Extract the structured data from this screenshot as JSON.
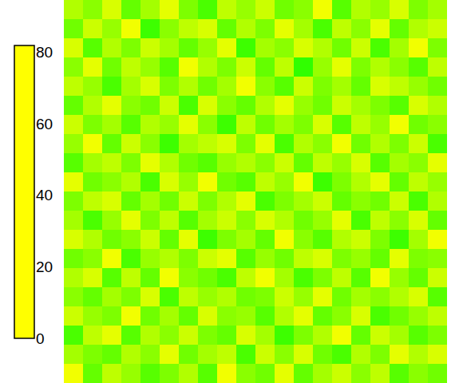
{
  "chart_data": {
    "type": "heatmap",
    "tick_labels": false,
    "colorbar_range": [
      0,
      82
    ],
    "colorbar_ticks": [
      0,
      20,
      40,
      60,
      80
    ],
    "cells": [
      [
        6,
        9,
        3,
        12,
        7,
        2,
        10,
        14,
        5,
        8,
        4,
        11,
        9,
        1,
        13,
        6,
        8,
        3,
        10,
        7
      ],
      [
        11,
        4,
        8,
        1,
        15,
        9,
        5,
        3,
        12,
        6,
        10,
        2,
        7,
        14,
        5,
        9,
        2,
        12,
        6,
        4
      ],
      [
        3,
        13,
        6,
        10,
        4,
        7,
        12,
        8,
        2,
        15,
        7,
        9,
        3,
        6,
        11,
        4,
        14,
        7,
        1,
        10
      ],
      [
        9,
        2,
        11,
        5,
        8,
        13,
        1,
        6,
        10,
        4,
        12,
        5,
        16,
        8,
        2,
        10,
        6,
        9,
        13,
        5
      ],
      [
        5,
        8,
        14,
        7,
        3,
        10,
        6,
        11,
        7,
        1,
        9,
        13,
        4,
        10,
        7,
        12,
        3,
        5,
        8,
        11
      ],
      [
        12,
        6,
        2,
        9,
        11,
        4,
        14,
        3,
        9,
        12,
        6,
        2,
        8,
        11,
        4,
        7,
        10,
        13,
        3,
        6
      ],
      [
        4,
        10,
        7,
        13,
        6,
        8,
        2,
        9,
        15,
        5,
        11,
        7,
        10,
        3,
        13,
        5,
        8,
        1,
        11,
        9
      ],
      [
        8,
        1,
        12,
        4,
        9,
        15,
        7,
        5,
        3,
        10,
        2,
        14,
        6,
        9,
        1,
        11,
        6,
        10,
        4,
        14
      ],
      [
        13,
        7,
        5,
        10,
        2,
        6,
        11,
        13,
        8,
        6,
        9,
        4,
        12,
        5,
        8,
        3,
        13,
        7,
        9,
        2
      ],
      [
        2,
        11,
        9,
        6,
        14,
        3,
        8,
        1,
        11,
        13,
        5,
        8,
        1,
        15,
        10,
        6,
        2,
        12,
        5,
        8
      ],
      [
        10,
        5,
        3,
        12,
        7,
        11,
        4,
        10,
        6,
        2,
        14,
        10,
        7,
        4,
        12,
        9,
        11,
        4,
        14,
        6
      ],
      [
        7,
        14,
        8,
        2,
        10,
        5,
        13,
        7,
        4,
        9,
        3,
        6,
        11,
        8,
        2,
        14,
        5,
        9,
        3,
        12
      ],
      [
        3,
        6,
        11,
        9,
        4,
        12,
        2,
        15,
        10,
        7,
        12,
        1,
        9,
        13,
        6,
        4,
        10,
        15,
        7,
        1
      ],
      [
        11,
        9,
        1,
        14,
        8,
        6,
        10,
        4,
        2,
        13,
        8,
        11,
        5,
        3,
        10,
        8,
        12,
        2,
        10,
        9
      ],
      [
        6,
        3,
        13,
        5,
        12,
        1,
        9,
        11,
        14,
        5,
        1,
        7,
        14,
        10,
        5,
        13,
        1,
        8,
        12,
        4
      ],
      [
        9,
        12,
        7,
        10,
        3,
        14,
        5,
        8,
        6,
        11,
        10,
        4,
        8,
        2,
        11,
        7,
        9,
        6,
        3,
        13
      ],
      [
        4,
        8,
        10,
        1,
        11,
        7,
        12,
        3,
        9,
        8,
        13,
        6,
        2,
        12,
        9,
        3,
        14,
        11,
        8,
        5
      ],
      [
        14,
        5,
        2,
        13,
        6,
        9,
        4,
        10,
        12,
        3,
        7,
        15,
        10,
        6,
        1,
        12,
        4,
        7,
        13,
        10
      ],
      [
        7,
        10,
        12,
        6,
        9,
        2,
        11,
        7,
        5,
        14,
        4,
        9,
        3,
        11,
        14,
        6,
        10,
        2,
        6,
        3
      ],
      [
        1,
        12,
        5,
        8,
        13,
        10,
        6,
        13,
        1,
        9,
        11,
        2,
        12,
        7,
        4,
        9,
        5,
        13,
        9,
        11
      ]
    ]
  }
}
